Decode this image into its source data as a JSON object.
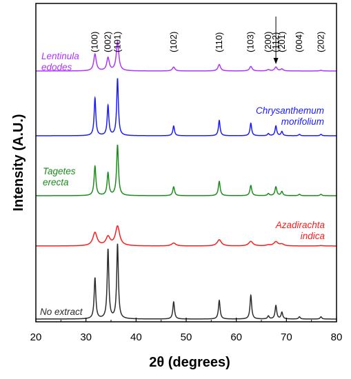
{
  "chart_data": {
    "type": "line",
    "xlabel": "2θ (degrees)",
    "ylabel": "Intensity (A.U.)",
    "xlim": [
      20,
      80
    ],
    "xticks": [
      20,
      30,
      40,
      50,
      60,
      70,
      80
    ],
    "y_ticks_shown": false,
    "grid": false,
    "legend": "none",
    "peak_labels": [
      {
        "text": "(100)",
        "x": 31.8
      },
      {
        "text": "(002)",
        "x": 34.4
      },
      {
        "text": "(101)",
        "x": 36.3
      },
      {
        "text": "(102)",
        "x": 47.5
      },
      {
        "text": "(110)",
        "x": 56.6
      },
      {
        "text": "(103)",
        "x": 62.9
      },
      {
        "text": "(200)",
        "x": 66.4
      },
      {
        "text": "(112)",
        "x": 67.9
      },
      {
        "text": "(201)",
        "x": 69.1
      },
      {
        "text": "(004)",
        "x": 72.6
      },
      {
        "text": "(202)",
        "x": 76.9
      }
    ],
    "series": [
      {
        "name": "No extract",
        "color": "#2b2b2b",
        "offset": 0,
        "width": 0.2,
        "peaks": [
          {
            "x": 31.8,
            "h": 0.55
          },
          {
            "x": 34.4,
            "h": 0.93
          },
          {
            "x": 36.3,
            "h": 1.0
          },
          {
            "x": 47.5,
            "h": 0.23
          },
          {
            "x": 56.6,
            "h": 0.25
          },
          {
            "x": 62.9,
            "h": 0.32
          },
          {
            "x": 66.4,
            "h": 0.04
          },
          {
            "x": 67.9,
            "h": 0.18
          },
          {
            "x": 69.1,
            "h": 0.09
          },
          {
            "x": 72.6,
            "h": 0.03
          },
          {
            "x": 76.9,
            "h": 0.03
          }
        ]
      },
      {
        "name": "Azadirachta indica",
        "color": "#ff1a1a",
        "offset": 1,
        "width": 0.5,
        "peaks": [
          {
            "x": 31.8,
            "h": 0.32
          },
          {
            "x": 34.4,
            "h": 0.21
          },
          {
            "x": 36.3,
            "h": 0.47
          },
          {
            "x": 47.5,
            "h": 0.07
          },
          {
            "x": 56.6,
            "h": 0.15
          },
          {
            "x": 62.9,
            "h": 0.11
          },
          {
            "x": 66.4,
            "h": 0.02
          },
          {
            "x": 67.9,
            "h": 0.1
          },
          {
            "x": 69.1,
            "h": 0.04
          },
          {
            "x": 76.9,
            "h": 0.01
          }
        ]
      },
      {
        "name": "Tagetes erecta",
        "color": "#1a8c1a",
        "offset": 2,
        "width": 0.22,
        "peaks": [
          {
            "x": 31.8,
            "h": 0.43
          },
          {
            "x": 34.4,
            "h": 0.33
          },
          {
            "x": 36.3,
            "h": 0.74
          },
          {
            "x": 47.5,
            "h": 0.13
          },
          {
            "x": 56.6,
            "h": 0.21
          },
          {
            "x": 62.9,
            "h": 0.15
          },
          {
            "x": 66.4,
            "h": 0.03
          },
          {
            "x": 67.9,
            "h": 0.13
          },
          {
            "x": 69.1,
            "h": 0.06
          },
          {
            "x": 72.6,
            "h": 0.02
          },
          {
            "x": 76.9,
            "h": 0.02
          }
        ]
      },
      {
        "name": "Chrysanthemum morifolium",
        "color": "#1a1aff",
        "offset": 3,
        "width": 0.2,
        "peaks": [
          {
            "x": 31.8,
            "h": 0.54
          },
          {
            "x": 34.4,
            "h": 0.43
          },
          {
            "x": 36.3,
            "h": 0.82
          },
          {
            "x": 47.5,
            "h": 0.14
          },
          {
            "x": 56.6,
            "h": 0.22
          },
          {
            "x": 62.9,
            "h": 0.18
          },
          {
            "x": 66.4,
            "h": 0.03
          },
          {
            "x": 67.9,
            "h": 0.14
          },
          {
            "x": 69.1,
            "h": 0.06
          },
          {
            "x": 72.6,
            "h": 0.02
          },
          {
            "x": 76.9,
            "h": 0.02
          }
        ]
      },
      {
        "name": "Lentinula edodes",
        "color": "#b033ff",
        "offset": 4,
        "width": 0.3,
        "peaks": [
          {
            "x": 31.8,
            "h": 0.26
          },
          {
            "x": 34.4,
            "h": 0.2
          },
          {
            "x": 36.3,
            "h": 0.45
          },
          {
            "x": 47.5,
            "h": 0.06
          },
          {
            "x": 56.6,
            "h": 0.1
          },
          {
            "x": 62.9,
            "h": 0.07
          },
          {
            "x": 66.4,
            "h": 0.02
          },
          {
            "x": 67.9,
            "h": 0.06
          },
          {
            "x": 69.1,
            "h": 0.03
          },
          {
            "x": 76.9,
            "h": 0.01
          }
        ]
      }
    ]
  }
}
